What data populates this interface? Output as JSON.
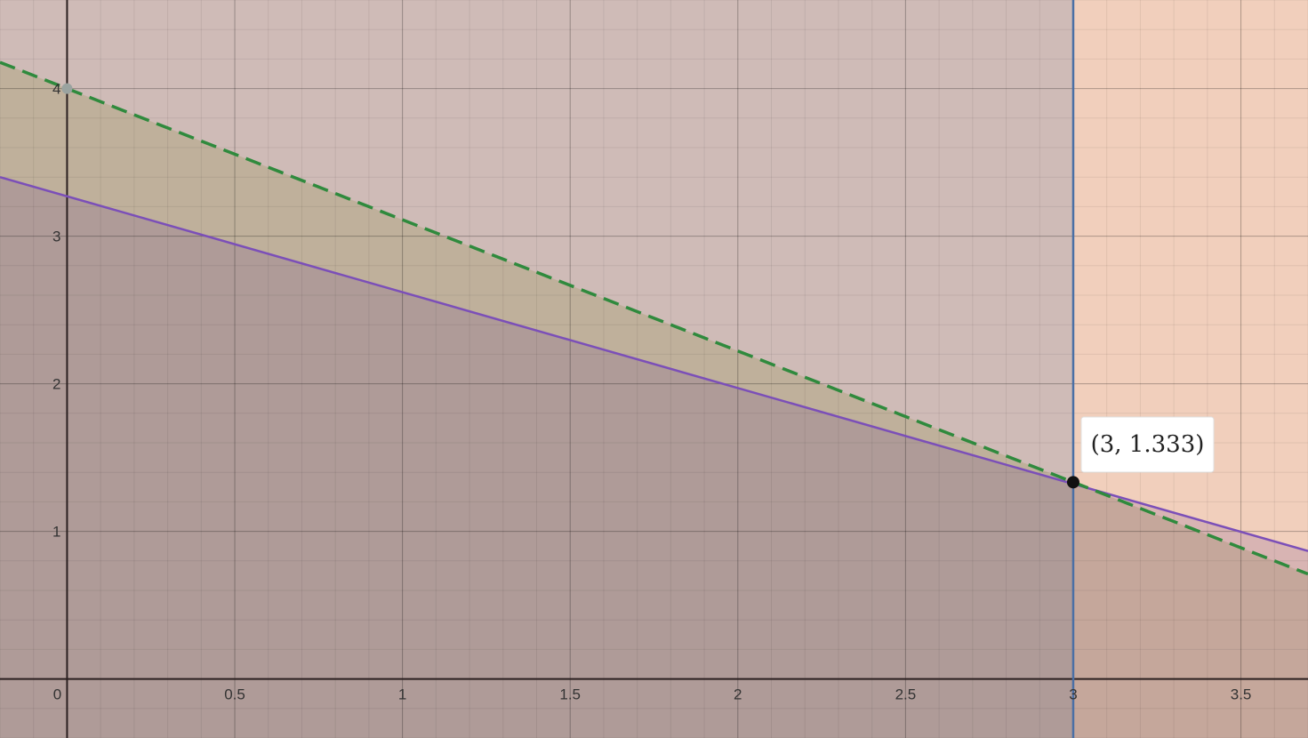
{
  "chart_data": {
    "type": "line",
    "title": "",
    "xlabel": "",
    "ylabel": "",
    "xlim": [
      -0.2,
      3.7
    ],
    "ylim": [
      -0.4,
      4.6
    ],
    "grid": true,
    "x_ticks": [
      "0",
      "0.5",
      "1",
      "1.5",
      "2",
      "2.5",
      "3",
      "3.5"
    ],
    "y_ticks": [
      "1",
      "2",
      "3",
      "4"
    ],
    "series": [
      {
        "x": [
          -0.2,
          3.7
        ],
        "y": [
          3.4,
          0.8667
        ],
        "color": "#7b4fb8",
        "style": "solid"
      },
      {
        "x": [
          -0.2,
          3.7
        ],
        "y": [
          4.1778,
          0.7111
        ],
        "color": "#2f8a3d",
        "style": "dashed"
      },
      {
        "x": [
          3,
          3
        ],
        "y": [
          -0.4,
          4.6
        ],
        "color": "#4a6fa5",
        "style": "solid"
      }
    ],
    "shaded_regions": [
      {
        "description": "below solid line",
        "color": "#6a3f8a"
      },
      {
        "description": "below dashed line",
        "color": "#8a8a3a"
      },
      {
        "description": "left of x = 3",
        "color": "#4a6fa5"
      },
      {
        "description": "background",
        "color": "#d06020"
      }
    ],
    "points": [
      {
        "x": 3,
        "y": 1.333,
        "label": "(3, 1.333)"
      },
      {
        "x": 0,
        "y": 4,
        "label": ""
      }
    ]
  }
}
